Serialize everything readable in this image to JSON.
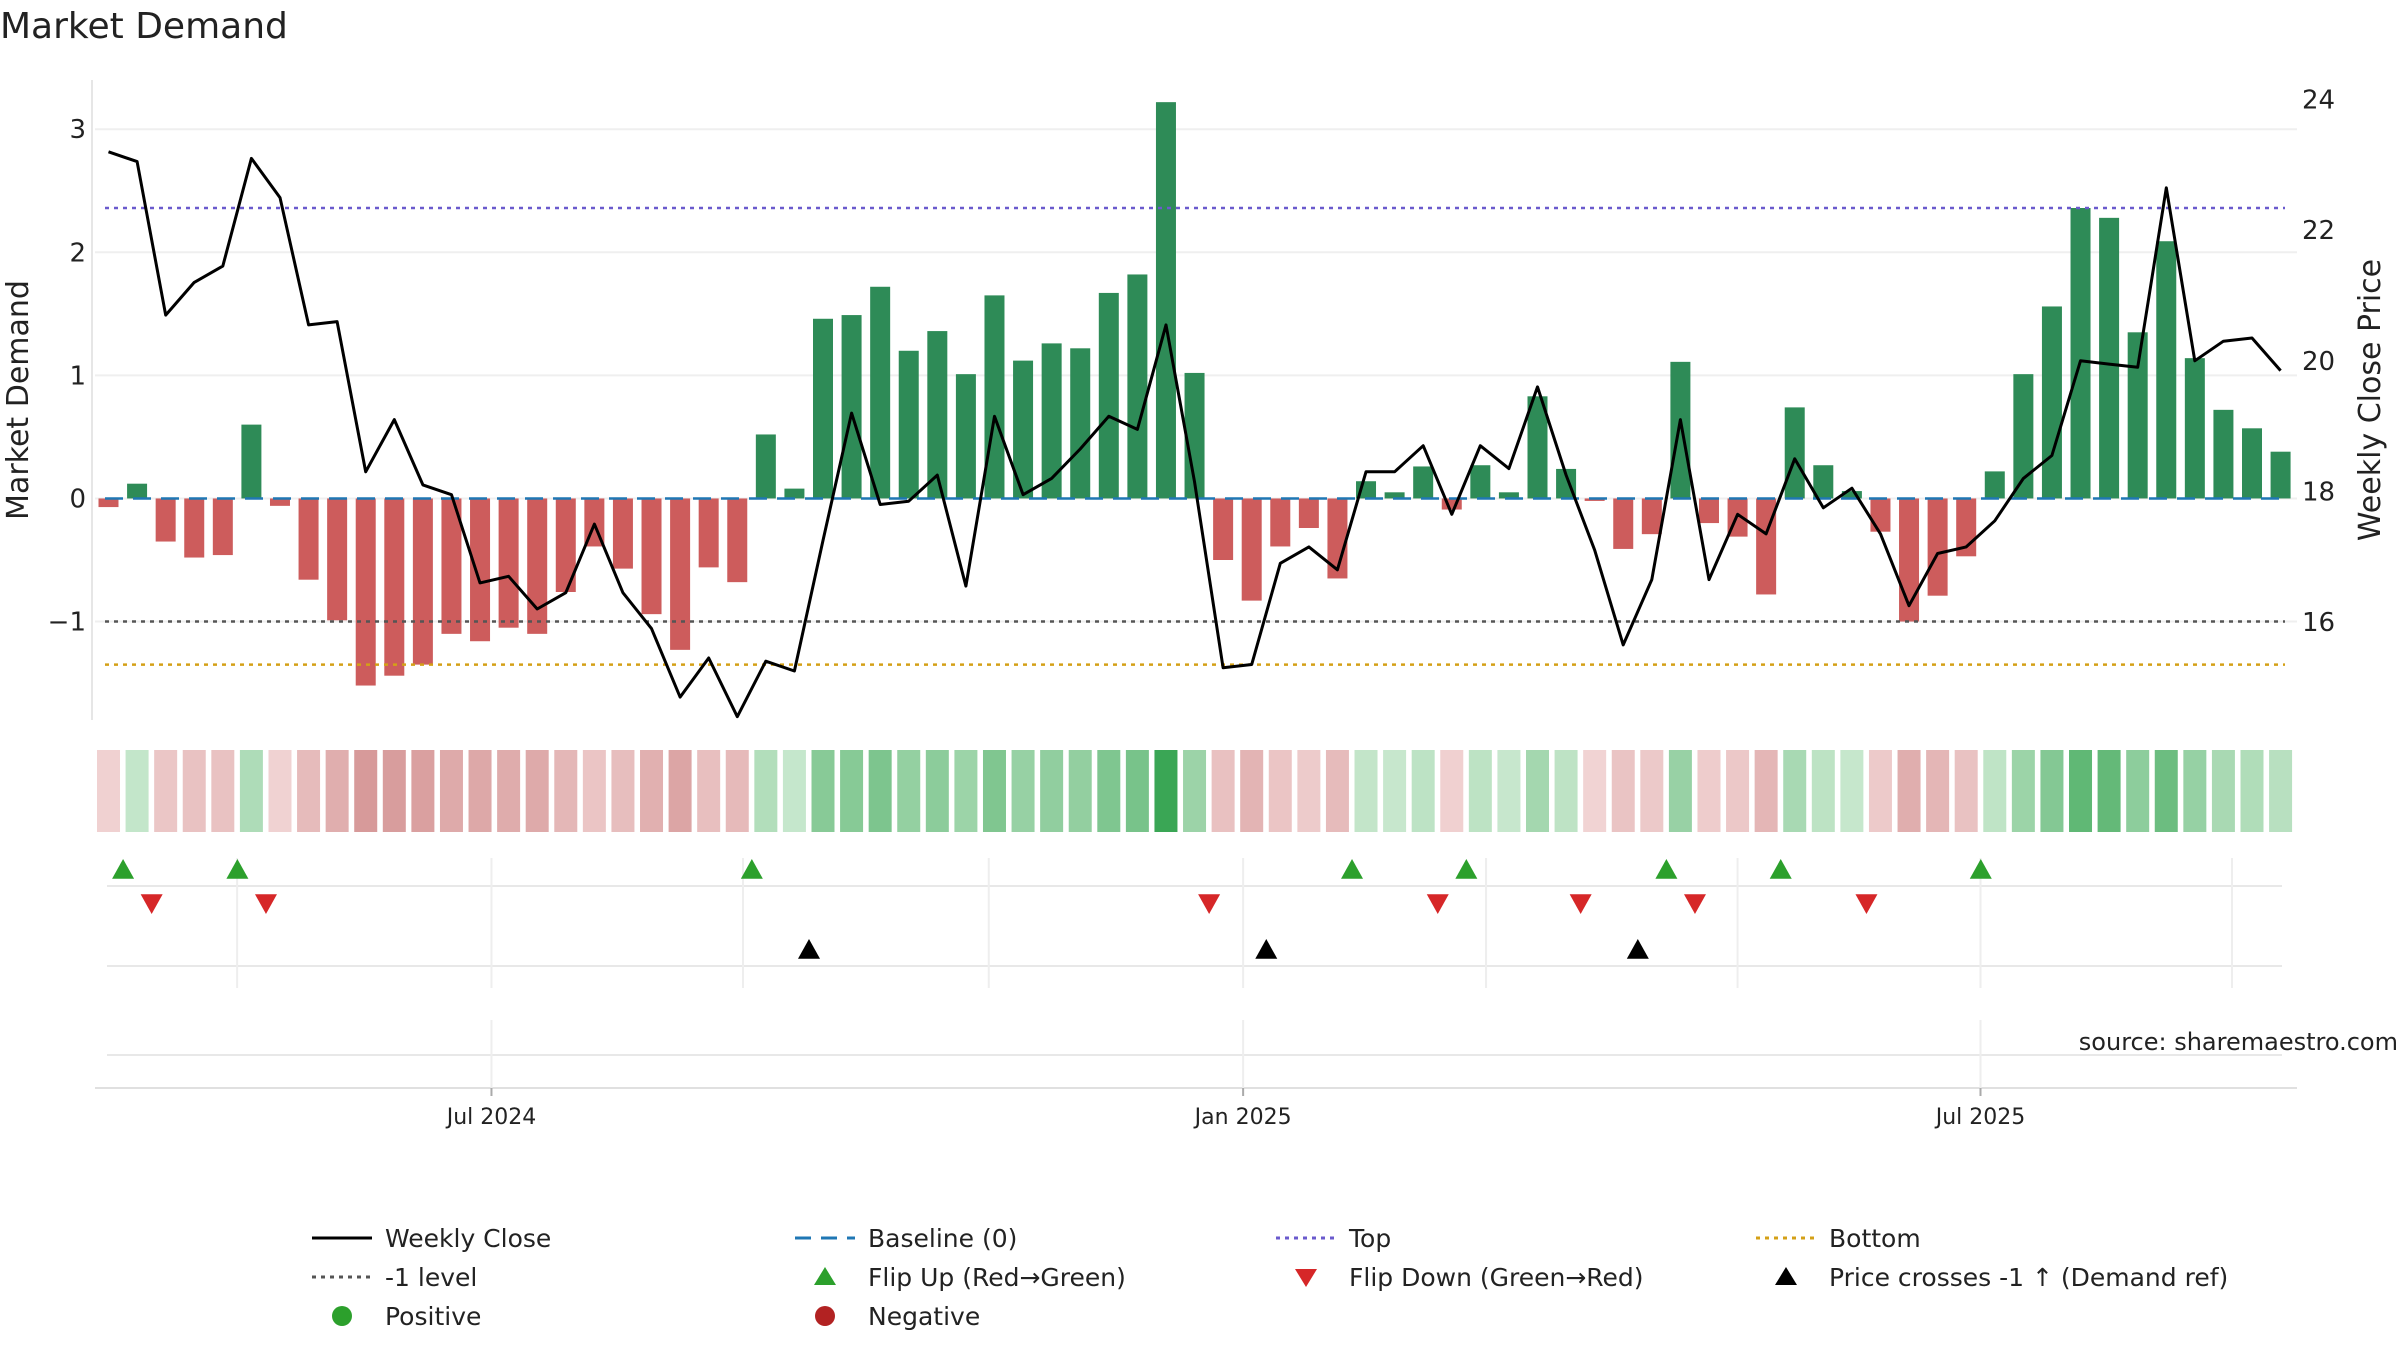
{
  "chart_data": {
    "type": "bar",
    "title": "Market Demand",
    "ylabel": "Market Demand",
    "y2label": "Weekly Close Price",
    "ylim": [
      -1.8,
      3.4
    ],
    "y2lim": [
      14.5,
      24.3
    ],
    "yticks": [
      {
        "v": 3,
        "label": "3"
      },
      {
        "v": 2,
        "label": "2"
      },
      {
        "v": 1,
        "label": "1"
      },
      {
        "v": 0,
        "label": "0"
      },
      {
        "v": -1,
        "label": "−1"
      }
    ],
    "y2ticks": [
      {
        "v": 24,
        "label": "24"
      },
      {
        "v": 22,
        "label": "22"
      },
      {
        "v": 20,
        "label": "20"
      },
      {
        "v": 18,
        "label": "18"
      },
      {
        "v": 16,
        "label": "16"
      }
    ],
    "xticks": [
      {
        "i": 13.4,
        "label": "Jul 2024"
      },
      {
        "i": 39.7,
        "label": "Jan 2025"
      },
      {
        "i": 65.5,
        "label": "Jul 2025"
      }
    ],
    "minor_grid_idx": [
      4.5,
      13.4,
      22.2,
      30.8,
      39.7,
      48.2,
      57.0,
      65.5,
      74.3
    ],
    "demand": [
      -0.07,
      0.12,
      -0.35,
      -0.48,
      -0.46,
      0.6,
      -0.06,
      -0.66,
      -0.99,
      -1.52,
      -1.44,
      -1.35,
      -1.1,
      -1.16,
      -1.05,
      -1.1,
      -0.76,
      -0.39,
      -0.57,
      -0.94,
      -1.23,
      -0.56,
      -0.68,
      0.52,
      0.08,
      1.46,
      1.49,
      1.72,
      1.2,
      1.36,
      1.01,
      1.65,
      1.12,
      1.26,
      1.22,
      1.67,
      1.82,
      3.22,
      1.02,
      -0.5,
      -0.83,
      -0.39,
      -0.24,
      -0.65,
      0.14,
      0.05,
      0.26,
      -0.09,
      0.27,
      0.05,
      0.83,
      0.24,
      -0.02,
      -0.41,
      -0.29,
      1.11,
      -0.2,
      -0.31,
      -0.78,
      0.74,
      0.27,
      0.06,
      -0.27,
      -1.0,
      -0.79,
      -0.47,
      0.22,
      1.01,
      1.56,
      2.36,
      2.28,
      1.35,
      2.09,
      1.14,
      0.72,
      0.57,
      0.38
    ],
    "price": [
      23.2,
      23.05,
      20.7,
      21.2,
      21.45,
      23.1,
      22.5,
      20.55,
      20.6,
      18.3,
      19.1,
      18.1,
      17.95,
      16.6,
      16.7,
      16.2,
      16.45,
      17.5,
      16.45,
      15.9,
      14.85,
      15.45,
      14.55,
      15.4,
      15.25,
      17.25,
      19.2,
      17.8,
      17.85,
      18.25,
      16.55,
      19.15,
      17.95,
      18.2,
      18.65,
      19.15,
      18.95,
      20.55,
      18.15,
      15.3,
      15.35,
      16.9,
      17.15,
      16.8,
      18.3,
      18.3,
      18.7,
      17.65,
      18.7,
      18.35,
      19.6,
      18.25,
      17.1,
      15.65,
      16.65,
      19.1,
      16.65,
      17.65,
      17.35,
      18.5,
      17.75,
      18.05,
      17.35,
      16.25,
      17.05,
      17.15,
      17.55,
      18.2,
      18.55,
      20.0,
      19.95,
      19.9,
      22.65,
      20.0,
      20.3,
      20.35,
      19.85
    ],
    "markers": {
      "flip_up": [
        1,
        5,
        23,
        44,
        48,
        55,
        59,
        66
      ],
      "flip_down": [
        2,
        6,
        39,
        47,
        52,
        56,
        62
      ],
      "price_cross": [
        25,
        41,
        54
      ]
    },
    "reference_lines": {
      "top": 2.36,
      "minus1": -1,
      "bottom": -1.35,
      "baseline": 0
    },
    "colors": {
      "positive": "#2e8b57",
      "negative": "#cd5c5c",
      "price": "#000000",
      "baseline": "#1f77b4",
      "top": "#6a5acd",
      "bottom": "#d4a017",
      "minus1": "#555555",
      "flip_up": "#2ca02c",
      "flip_down": "#d62728",
      "cross": "#000000",
      "positive_dot": "#2ca02c",
      "negative_dot": "#b22222"
    },
    "legend": {
      "position": "bottom",
      "items": [
        {
          "label": "Weekly Close",
          "kind": "line-solid",
          "color": "#000000"
        },
        {
          "label": "Baseline (0)",
          "kind": "line-dash",
          "color": "#1f77b4"
        },
        {
          "label": "Top",
          "kind": "line-dot",
          "color": "#6a5acd"
        },
        {
          "label": "Bottom",
          "kind": "line-dot",
          "color": "#d4a017"
        },
        {
          "label": "-1 level",
          "kind": "line-dot",
          "color": "#555555"
        },
        {
          "label": "Flip Up (Red→Green)",
          "kind": "tri-up",
          "color": "#2ca02c"
        },
        {
          "label": "Flip Down (Green→Red)",
          "kind": "tri-down",
          "color": "#d62728"
        },
        {
          "label": "Price crosses -1 ↑ (Demand ref)",
          "kind": "tri-up",
          "color": "#000000"
        },
        {
          "label": "Positive",
          "kind": "dot",
          "color": "#2ca02c"
        },
        {
          "label": "Negative",
          "kind": "dot",
          "color": "#b22222"
        }
      ]
    },
    "source": "source: sharemaestro.com"
  }
}
